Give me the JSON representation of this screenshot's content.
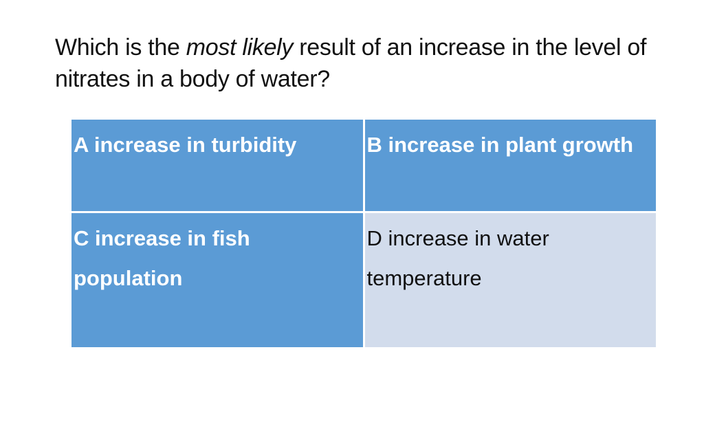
{
  "question": {
    "part1": "Which is the ",
    "emphasis": "most likely",
    "part2": " result of an increase in the level of nitrates in a body of water?"
  },
  "answers": [
    {
      "text": "A increase in turbidity"
    },
    {
      "text": "B increase in plant growth"
    },
    {
      "text": "C increase in fish population"
    },
    {
      "text": "D increase in water temperature"
    }
  ],
  "colors": {
    "header_blue": "#5b9bd5",
    "light_blue": "#d2dcec",
    "text_white": "#ffffff",
    "text_dark": "#111111"
  }
}
